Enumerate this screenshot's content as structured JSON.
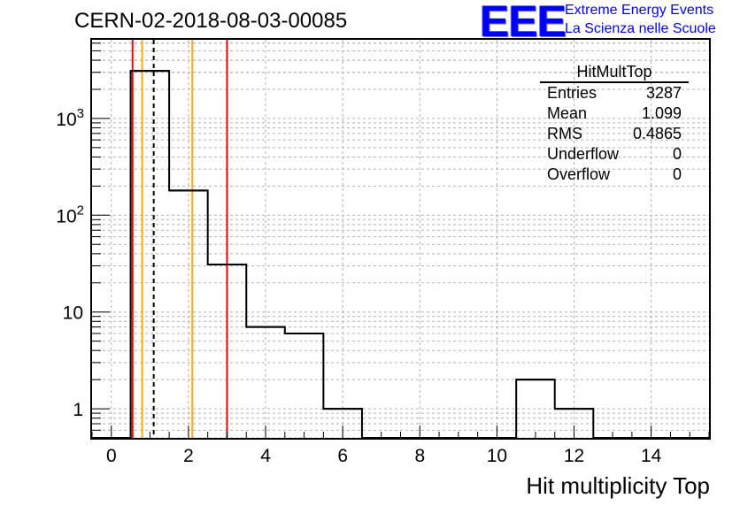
{
  "header": {
    "title": "CERN-02-2018-08-03-00085",
    "logo": "EEE",
    "logo_line1": "Extreme Energy Events",
    "logo_line2": "La Scienza nelle Scuole"
  },
  "stats_box": {
    "name": "HitMultTop",
    "rows": [
      {
        "label": "Entries",
        "value": "3287"
      },
      {
        "label": "Mean",
        "value": "1.099"
      },
      {
        "label": "RMS",
        "value": "0.4865"
      },
      {
        "label": "Underflow",
        "value": "0"
      },
      {
        "label": "Overflow",
        "value": "0"
      }
    ]
  },
  "chart_data": {
    "type": "bar",
    "title": "CERN-02-2018-08-03-00085",
    "xlabel": "Hit multiplicity Top",
    "ylabel": "",
    "xlim": [
      -0.5,
      15.5
    ],
    "ylim": [
      0.5,
      6500
    ],
    "yscale": "log",
    "grid": true,
    "histogram": true,
    "bin_edges": [
      -0.5,
      0.5,
      1.5,
      2.5,
      3.5,
      4.5,
      5.5,
      6.5,
      7.5,
      8.5,
      9.5,
      10.5,
      11.5,
      12.5,
      13.5,
      14.5,
      15.5
    ],
    "values": [
      0,
      3100,
      180,
      31,
      7,
      6,
      1,
      0,
      0,
      0,
      0,
      2,
      1,
      0,
      0,
      0
    ],
    "x_ticks": [
      0,
      2,
      4,
      6,
      8,
      10,
      12,
      14
    ],
    "y_ticks": [
      {
        "value": 1,
        "label": "1"
      },
      {
        "value": 10,
        "label": "10"
      },
      {
        "value": 100,
        "label": "10",
        "exp": "2"
      },
      {
        "value": 1000,
        "label": "10",
        "exp": "3"
      }
    ],
    "vertical_lines": [
      {
        "x": 0.55,
        "color": "#ff0000",
        "style": "solid"
      },
      {
        "x": 0.8,
        "color": "#ffaa00",
        "style": "solid"
      },
      {
        "x": 1.099,
        "color": "#000000",
        "style": "dashed"
      },
      {
        "x": 2.1,
        "color": "#ffaa00",
        "style": "solid"
      },
      {
        "x": 3.0,
        "color": "#ff0000",
        "style": "solid"
      }
    ]
  }
}
